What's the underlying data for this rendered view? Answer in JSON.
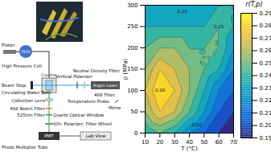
{
  "diagram": {
    "labels": {
      "piston": "Piston",
      "h2o": "H₂O",
      "hpc": "High Pressure Cell",
      "ndf": "Neutral Density Filter",
      "laser": "Argon Laser",
      "f488": "488 Filter",
      "vp": "Vertical Polarizer",
      "cuvette": "Cuvette",
      "beamstop": "Beam Stop",
      "bath": "Circulating Water Bath",
      "probe": "Temperature Probe",
      "mirror": "Mirror",
      "lens": "Collection Lens",
      "notch": "488 Notch Filter",
      "f525": "525nm Filter",
      "quartz": "Quartz Optical Window",
      "vh": "V/H- Polarizer, Filter Wheel",
      "pmt": "PMT",
      "pmtlong": "Photo Multiplier Tube",
      "labview": "Lab View"
    }
  },
  "chart_data": {
    "type": "contour",
    "x_label": "T (°C)",
    "y_label": "p (MPa)",
    "x": [
      10,
      20,
      30,
      40,
      50,
      60,
      70
    ],
    "y": [
      0,
      50,
      100,
      150,
      200,
      250,
      300
    ],
    "cells": [
      [
        0.24,
        0.25,
        0.24,
        0.22,
        0.21,
        0.2,
        0.19
      ],
      [
        0.26,
        0.28,
        0.27,
        0.25,
        0.23,
        0.21,
        0.2
      ],
      [
        0.27,
        0.29,
        0.28,
        0.26,
        0.24,
        0.22,
        0.21
      ],
      [
        0.26,
        0.28,
        0.27,
        0.26,
        0.25,
        0.24,
        0.22
      ],
      [
        0.25,
        0.26,
        0.26,
        0.25,
        0.25,
        0.25,
        0.23
      ],
      [
        0.24,
        0.24,
        0.24,
        0.24,
        0.24,
        0.25,
        0.24
      ],
      [
        0.23,
        0.23,
        0.23,
        0.23,
        0.23,
        0.24,
        0.24
      ]
    ],
    "xlim": [
      10,
      70
    ],
    "ylim": [
      0,
      300
    ],
    "xticks": [
      10,
      20,
      30,
      40,
      50,
      60,
      70
    ],
    "yticks": [
      0,
      50,
      100,
      150,
      200,
      250,
      300
    ],
    "colorbar": {
      "label": "r(T,p)",
      "lim": [
        0.19,
        0.29
      ],
      "ticks": [
        0.19,
        {
          "value": 0.2,
          "label": "0.20"
        },
        0.21,
        0.22,
        0.23,
        0.24,
        0.25,
        0.26,
        0.27,
        0.28,
        0.29
      ]
    },
    "annotations": [
      {
        "x": 20,
        "y": 100,
        "text": "0.28"
      },
      {
        "x": 45,
        "y": 20,
        "text": "0.22"
      },
      {
        "x": 60,
        "y": 250,
        "text": "0.25"
      },
      {
        "x": 35,
        "y": 285,
        "text": "0.23"
      }
    ]
  }
}
